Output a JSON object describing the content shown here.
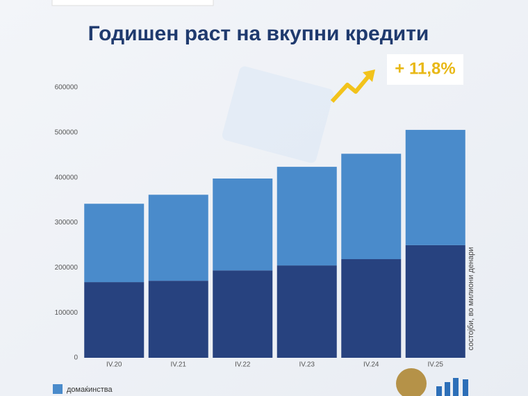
{
  "chart_data": {
    "type": "stacked-bar",
    "title": "Годишен раст на вкупни кредити",
    "annotation": "+ 11,8%",
    "axis_note": "состојби, во милиони денари",
    "categories": [
      "IV.20",
      "IV.21",
      "IV.22",
      "IV.23",
      "IV.24",
      "IV.25"
    ],
    "series": [
      {
        "color": "#27427f",
        "values": [
          168000,
          171000,
          194000,
          205000,
          219000,
          250000
        ]
      },
      {
        "name": "домаќинства",
        "color": "#4a8bcb",
        "values": [
          174000,
          191000,
          204000,
          219000,
          234000,
          256000
        ]
      }
    ],
    "ylim": [
      0,
      600000
    ],
    "yticks": [
      0,
      100000,
      200000,
      300000,
      400000,
      500000,
      600000
    ]
  }
}
